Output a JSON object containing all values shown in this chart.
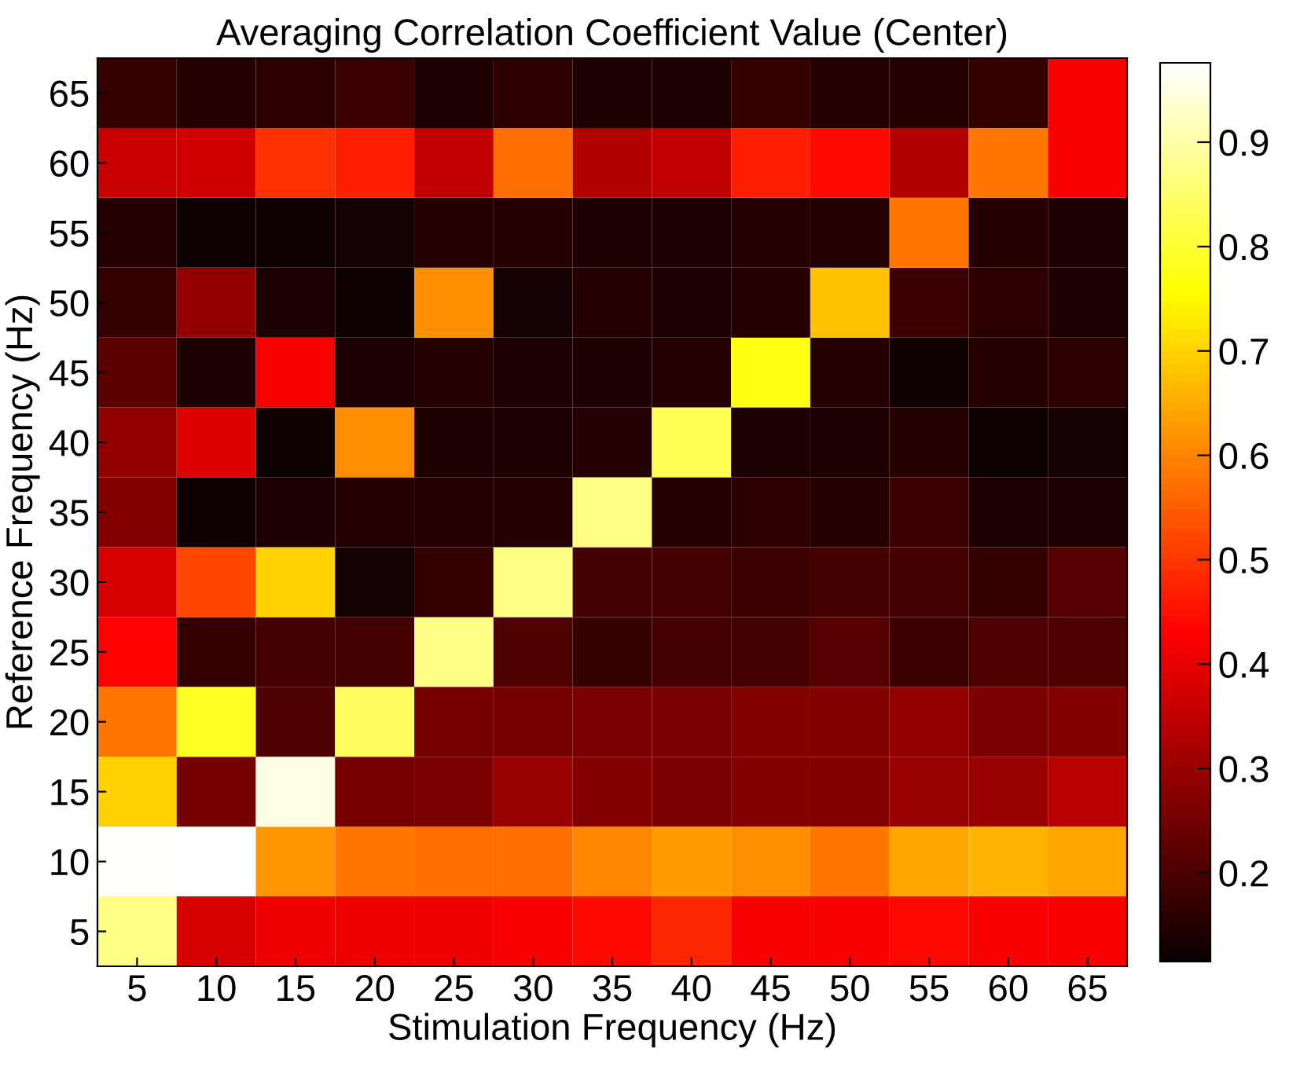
{
  "chart_data": {
    "type": "heatmap",
    "title": "Averaging Correlation Coefficient Value (Center)",
    "xlabel": "Stimulation Frequency (Hz)",
    "ylabel": "Reference Frequency (Hz)",
    "categories": [
      "5",
      "10",
      "15",
      "20",
      "25",
      "30",
      "35",
      "40",
      "45",
      "50",
      "55",
      "60",
      "65"
    ],
    "y_categories": [
      "65",
      "60",
      "55",
      "50",
      "45",
      "40",
      "35",
      "30",
      "25",
      "20",
      "15",
      "10",
      "5"
    ],
    "cells": [
      [
        0.17,
        0.15,
        0.16,
        0.18,
        0.14,
        0.16,
        0.14,
        0.14,
        0.17,
        0.15,
        0.15,
        0.17,
        0.42
      ],
      [
        0.36,
        0.37,
        0.49,
        0.47,
        0.35,
        0.57,
        0.33,
        0.35,
        0.47,
        0.44,
        0.33,
        0.58,
        0.42
      ],
      [
        0.15,
        0.12,
        0.12,
        0.13,
        0.15,
        0.15,
        0.14,
        0.14,
        0.15,
        0.15,
        0.58,
        0.15,
        0.14
      ],
      [
        0.17,
        0.29,
        0.14,
        0.12,
        0.61,
        0.13,
        0.15,
        0.14,
        0.15,
        0.68,
        0.18,
        0.16,
        0.14
      ],
      [
        0.22,
        0.14,
        0.42,
        0.14,
        0.15,
        0.14,
        0.14,
        0.15,
        0.77,
        0.15,
        0.12,
        0.15,
        0.16
      ],
      [
        0.29,
        0.39,
        0.12,
        0.61,
        0.14,
        0.14,
        0.15,
        0.83,
        0.14,
        0.14,
        0.15,
        0.12,
        0.13
      ],
      [
        0.27,
        0.12,
        0.14,
        0.15,
        0.15,
        0.15,
        0.87,
        0.15,
        0.16,
        0.15,
        0.18,
        0.14,
        0.14
      ],
      [
        0.38,
        0.52,
        0.7,
        0.13,
        0.17,
        0.87,
        0.19,
        0.19,
        0.18,
        0.19,
        0.19,
        0.17,
        0.21
      ],
      [
        0.43,
        0.17,
        0.19,
        0.19,
        0.87,
        0.2,
        0.17,
        0.19,
        0.19,
        0.21,
        0.18,
        0.2,
        0.2
      ],
      [
        0.58,
        0.79,
        0.2,
        0.84,
        0.25,
        0.25,
        0.26,
        0.26,
        0.27,
        0.27,
        0.29,
        0.26,
        0.27
      ],
      [
        0.7,
        0.25,
        0.95,
        0.25,
        0.26,
        0.3,
        0.27,
        0.26,
        0.27,
        0.27,
        0.3,
        0.3,
        0.34
      ],
      [
        0.97,
        0.98,
        0.62,
        0.58,
        0.57,
        0.57,
        0.6,
        0.63,
        0.61,
        0.58,
        0.64,
        0.66,
        0.64
      ],
      [
        0.87,
        0.38,
        0.41,
        0.41,
        0.41,
        0.42,
        0.44,
        0.48,
        0.42,
        0.42,
        0.44,
        0.42,
        0.42
      ]
    ],
    "clim": [
      0.115,
      0.976
    ],
    "cticks": [
      0.2,
      0.3,
      0.4,
      0.5,
      0.6,
      0.7,
      0.8,
      0.9
    ]
  }
}
